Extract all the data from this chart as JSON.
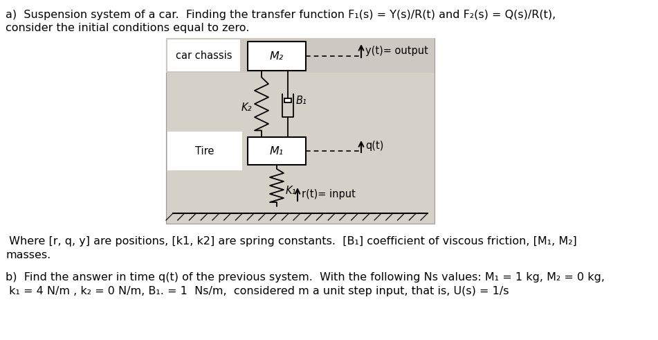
{
  "bg_color": "#ffffff",
  "title_a": "a)  Suspension system of a car.  Finding the transfer function F₁(s) = Y(s)/R(t) and F₂(s) = Q(s)/R(t),",
  "title_a2": "consider the initial conditions equal to zero.",
  "label_car_chassis": "car chassis",
  "label_tire": "Tire",
  "label_M2": "M₂",
  "label_M1": "M₁",
  "label_K2": "K₂",
  "label_B1": "B₁",
  "label_K1": "K₁",
  "label_yt": "y(t)= output",
  "label_qt": "q(t)",
  "label_rt": "r(t)= input",
  "text_where": " Where [r, q, y] are positions, [k1, k2] are spring constants.  [B₁] coefficient of viscous friction, [M₁, M₂]",
  "text_masses": "masses.",
  "title_b": "b)  Find the answer in time q(t) of the previous system.  With the following Ns values: M₁ = 1 kg, M₂ = 0 kg,",
  "title_b2": " k₁ = 4 N/m , k₂ = 0 N/m, B₁. = 1  Ns/m,  considered m a unit step input, that is, U(s) = 1/s",
  "diagram_bg": "#ccc8be",
  "diagram_bg2": "#d5d0c8",
  "box_color": "#ffffff",
  "box_edge": "#000000",
  "font_size_main": 11.5,
  "font_size_diagram": 10.5
}
